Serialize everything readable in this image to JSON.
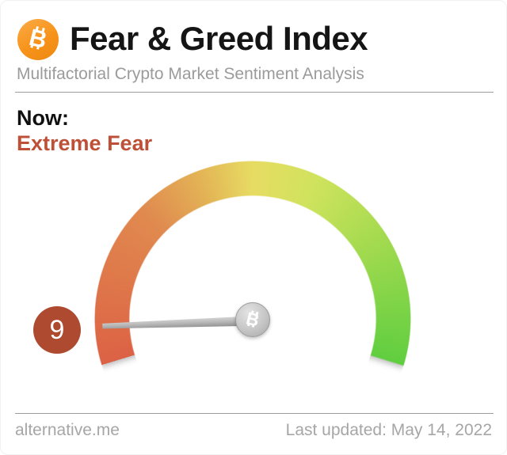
{
  "header": {
    "logo_icon": "bitcoin-icon",
    "title": "Fear & Greed Index",
    "subtitle": "Multifactorial Crypto Market Sentiment Analysis"
  },
  "now": {
    "label": "Now:",
    "classification": "Extreme Fear"
  },
  "gauge": {
    "value_badge": "9",
    "needle_angle_deg": -2,
    "hub_icon": "bitcoin-icon",
    "badge_color": "#ad4a2f",
    "classification_color": "#bf5038"
  },
  "footer": {
    "site": "alternative.me",
    "last_updated": "Last updated: May 14, 2022"
  },
  "chart_data": {
    "type": "gauge",
    "title": "Fear & Greed Index",
    "subtitle": "Multifactorial Crypto Market Sentiment Analysis",
    "value": 9,
    "min": 0,
    "max": 100,
    "classification": "Extreme Fear",
    "arc_sweep_deg": 214,
    "arc_color_stops": [
      {
        "position": 0,
        "color": "#dc6245"
      },
      {
        "position": 25,
        "color": "#e08a4f"
      },
      {
        "position": 50,
        "color": "#e7dc63"
      },
      {
        "position": 75,
        "color": "#a3da4f"
      },
      {
        "position": 100,
        "color": "#60ce40"
      }
    ],
    "value_badge_color": "#ad4a2f",
    "needle": "gray tapered needle pointing to value 9 (extreme fear, left red end)",
    "annotations": [
      "Now:",
      "Extreme Fear",
      "9"
    ],
    "source": "alternative.me",
    "last_updated": "May 14, 2022"
  }
}
